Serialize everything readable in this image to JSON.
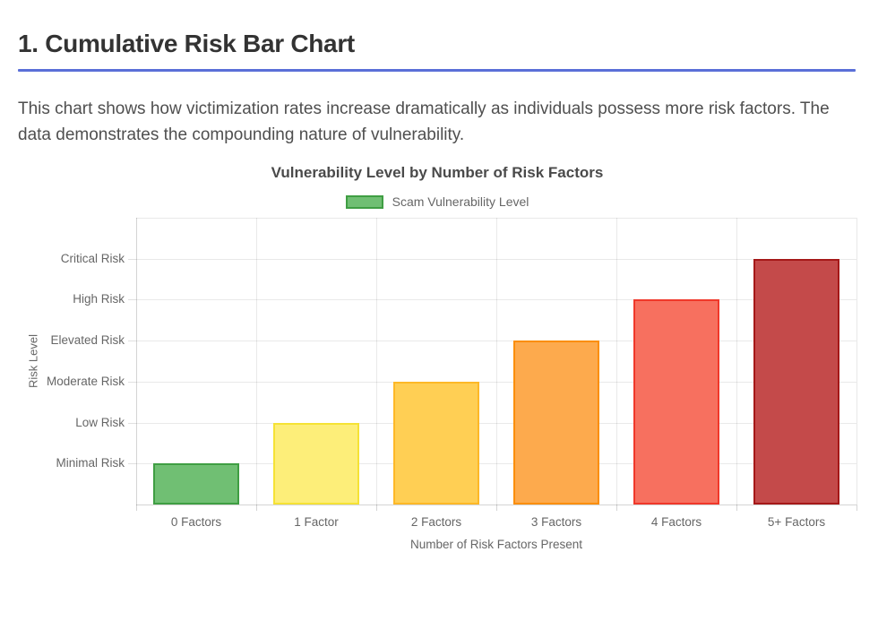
{
  "header": {
    "title": "1. Cumulative Risk Bar Chart",
    "divider_color": "#5a6fd8"
  },
  "description": "This chart shows how victimization rates increase dramatically as individuals possess more risk factors. The data demonstrates the compounding nature of vulnerability.",
  "chart_data": {
    "type": "bar",
    "title": "Vulnerability Level by Number of Risk Factors",
    "legend_label": "Scam Vulnerability Level",
    "legend_position": "top",
    "categories": [
      "0 Factors",
      "1 Factor",
      "2 Factors",
      "3 Factors",
      "4 Factors",
      "5+ Factors"
    ],
    "series": [
      {
        "name": "Scam Vulnerability Level",
        "values": [
          1,
          2,
          3,
          4,
          5,
          6
        ]
      }
    ],
    "ytick_values": [
      1,
      2,
      3,
      4,
      5,
      6
    ],
    "value_labels": [
      "Minimal Risk",
      "Low Risk",
      "Moderate Risk",
      "Elevated Risk",
      "High Risk",
      "Critical Risk"
    ],
    "xlabel": "Number of Risk Factors Present",
    "ylabel": "Risk Level",
    "ylim": [
      0,
      7
    ],
    "grid": true,
    "bar_fills": [
      "#70bf73",
      "#fdee79",
      "#ffcf54",
      "#fdaa4d",
      "#f7705f",
      "#c44a4a"
    ],
    "bar_borders": [
      "#3f9e43",
      "#f5e235",
      "#fdb827",
      "#fb8e06",
      "#f0382a",
      "#a51818"
    ],
    "legend_swatch_fill": "#70bf73",
    "legend_swatch_border": "#3f9e43"
  }
}
